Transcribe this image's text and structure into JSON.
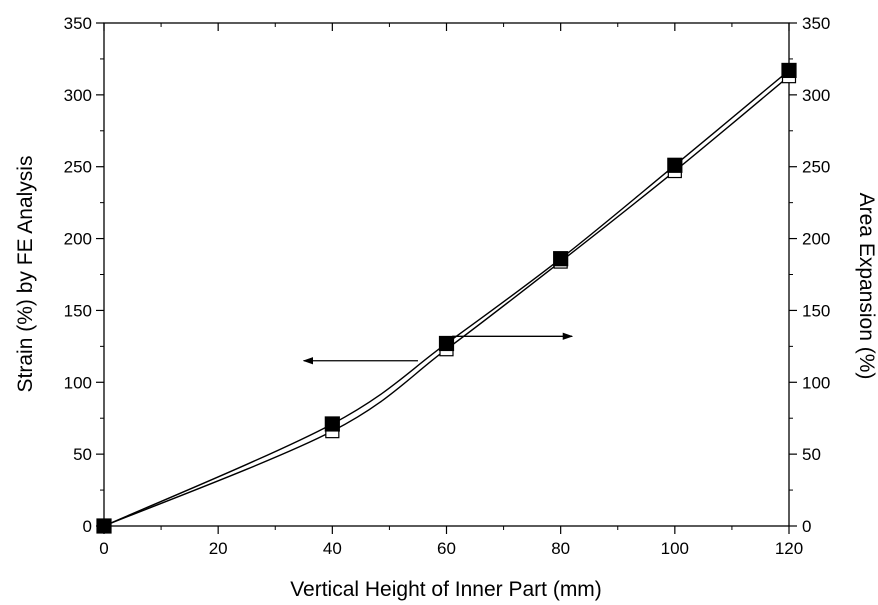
{
  "chart_data": {
    "type": "line",
    "title": "",
    "xlabel": "Vertical Height of Inner Part (mm)",
    "ylabel": "Strain (%) by FE Analysis",
    "y2label": "Area Expansion (%)",
    "xlim": [
      0,
      120
    ],
    "ylim": [
      0,
      350
    ],
    "y2lim": [
      0,
      350
    ],
    "x_ticks": [
      "0",
      "20",
      "40",
      "60",
      "80",
      "100",
      "120"
    ],
    "y_ticks": [
      "0",
      "50",
      "100",
      "150",
      "200",
      "250",
      "300",
      "350"
    ],
    "y2_ticks": [
      "0",
      "50",
      "100",
      "150",
      "200",
      "250",
      "300",
      "350"
    ],
    "grid": false,
    "legend": "none",
    "series": [
      {
        "axis": "left",
        "marker": "hollow-square",
        "color": "#000000",
        "x": [
          0,
          40,
          60,
          80,
          100,
          120
        ],
        "values": [
          0,
          66,
          123,
          184,
          247,
          313
        ]
      },
      {
        "axis": "right",
        "marker": "filled-square",
        "color": "#000000",
        "x": [
          0,
          40,
          60,
          80,
          100,
          120
        ],
        "values": [
          0,
          71,
          127,
          186,
          251,
          317
        ]
      }
    ],
    "annotations": [
      {
        "type": "arrow",
        "direction": "left",
        "x_from": 55,
        "x_to": 35,
        "y": 115
      },
      {
        "type": "arrow",
        "direction": "right",
        "x_from": 61,
        "x_to": 82,
        "y": 132
      }
    ]
  }
}
